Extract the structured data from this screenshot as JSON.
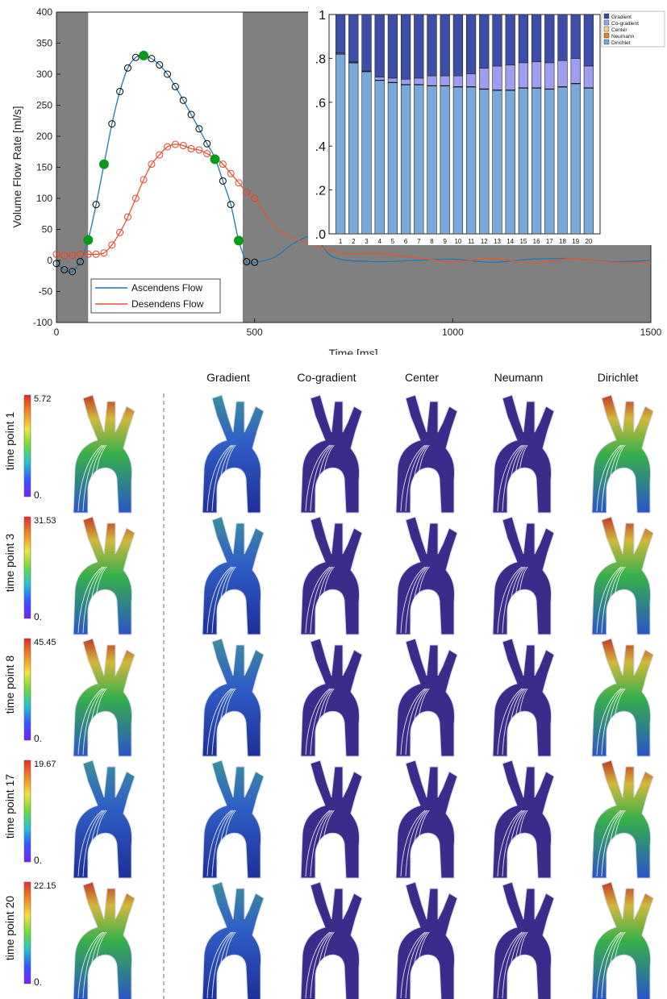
{
  "chart_data": [
    {
      "type": "line",
      "xlabel": "Time [ms]",
      "ylabel": "Volume Flow Rate [ml/s]",
      "xlim": [
        0,
        1500
      ],
      "ylim": [
        -100,
        400
      ],
      "xticks": [
        0,
        500,
        1000,
        1500
      ],
      "yticks": [
        -100,
        -50,
        0,
        50,
        100,
        150,
        200,
        250,
        300,
        350,
        400
      ],
      "grid": false,
      "legend_position": "bottom-left",
      "shaded_ranges": [
        [
          0,
          80
        ],
        [
          470,
          1500
        ]
      ],
      "series": [
        {
          "name": "Ascendens Flow",
          "color": "#1f77b4",
          "marker_color": "#000000",
          "x": [
            0,
            20,
            40,
            60,
            80,
            100,
            120,
            140,
            160,
            180,
            200,
            220,
            240,
            260,
            280,
            300,
            320,
            340,
            360,
            380,
            400,
            420,
            440,
            460,
            480,
            500,
            550,
            600,
            650,
            700,
            800,
            900,
            1000,
            1100,
            1200,
            1300,
            1400,
            1500
          ],
          "y": [
            -5,
            -15,
            -18,
            -2,
            33,
            90,
            155,
            220,
            272,
            310,
            327,
            330,
            325,
            315,
            300,
            280,
            258,
            235,
            212,
            188,
            165,
            128,
            90,
            32,
            -2,
            -3,
            5,
            28,
            38,
            5,
            -2,
            0,
            2,
            -3,
            2,
            3,
            -2,
            0
          ]
        },
        {
          "name": "Desendens Flow",
          "color": "#e4572e",
          "marker_color": "#e8402a",
          "x": [
            0,
            20,
            40,
            60,
            80,
            100,
            120,
            140,
            160,
            180,
            200,
            220,
            240,
            260,
            280,
            300,
            320,
            340,
            360,
            380,
            400,
            420,
            440,
            460,
            480,
            500,
            550,
            600,
            650,
            700,
            750,
            800,
            900,
            1000,
            1100,
            1200,
            1300,
            1400,
            1500
          ],
          "y": [
            10,
            8,
            8,
            10,
            10,
            10,
            12,
            25,
            45,
            70,
            100,
            130,
            155,
            170,
            183,
            187,
            185,
            180,
            178,
            172,
            165,
            155,
            140,
            125,
            110,
            100,
            55,
            35,
            25,
            15,
            10,
            12,
            5,
            -2,
            3,
            -4,
            3,
            -3,
            -4
          ]
        }
      ],
      "highlight_points": {
        "color": "#0a9a1a",
        "x": [
          80,
          120,
          220,
          400,
          460
        ],
        "y": [
          33,
          155,
          330,
          163,
          32
        ]
      }
    },
    {
      "type": "bar",
      "stacked": true,
      "categories": [
        "1",
        "2",
        "3",
        "4",
        "5",
        "6",
        "7",
        "8",
        "9",
        "10",
        "11",
        "12",
        "13",
        "14",
        "15",
        "16",
        "17",
        "18",
        "19",
        "20"
      ],
      "ylim": [
        0,
        1
      ],
      "ytick_labels": [
        ".0",
        ".2",
        ".4",
        ".6",
        ".8",
        "1"
      ],
      "yticks": [
        0,
        0.2,
        0.4,
        0.6,
        0.8,
        1
      ],
      "legend_position": "outside-right",
      "series": [
        {
          "name": "Dirichlet",
          "color": "#78a9d8",
          "values": [
            0.82,
            0.78,
            0.74,
            0.7,
            0.69,
            0.68,
            0.68,
            0.675,
            0.675,
            0.67,
            0.67,
            0.66,
            0.655,
            0.655,
            0.665,
            0.665,
            0.66,
            0.67,
            0.685,
            0.665
          ]
        },
        {
          "name": "Neumann",
          "color": "#e8821e",
          "values": [
            0,
            0,
            0,
            0,
            0,
            0,
            0,
            0,
            0,
            0,
            0,
            0,
            0,
            0,
            0,
            0,
            0,
            0,
            0,
            0
          ]
        },
        {
          "name": "Center",
          "color": "#e9d48a",
          "values": [
            0,
            0,
            0,
            0,
            0,
            0,
            0,
            0,
            0,
            0,
            0,
            0,
            0,
            0,
            0,
            0,
            0,
            0,
            0,
            0
          ]
        },
        {
          "name": "Co-gradient",
          "color": "#9d9ef0",
          "values": [
            0.005,
            0.005,
            0.005,
            0.015,
            0.02,
            0.025,
            0.03,
            0.045,
            0.045,
            0.05,
            0.06,
            0.095,
            0.11,
            0.115,
            0.115,
            0.12,
            0.12,
            0.12,
            0.115,
            0.1
          ]
        },
        {
          "name": "Gradient",
          "color": "#3c4ea8",
          "values": [
            0.175,
            0.215,
            0.255,
            0.285,
            0.29,
            0.295,
            0.29,
            0.28,
            0.28,
            0.28,
            0.27,
            0.245,
            0.235,
            0.23,
            0.22,
            0.215,
            0.22,
            0.21,
            0.2,
            0.235
          ]
        }
      ]
    }
  ],
  "grid": {
    "columns": [
      "Gradient",
      "Co-gradient",
      "Center",
      "Neumann",
      "Dirichlet"
    ],
    "rows": [
      {
        "label": "time point 1",
        "max": "5.72",
        "min": "0."
      },
      {
        "label": "time point 3",
        "max": "31.53",
        "min": "0."
      },
      {
        "label": "time point 8",
        "max": "45.45",
        "min": "0."
      },
      {
        "label": "time point 17",
        "max": "19.67",
        "min": "0."
      },
      {
        "label": "time point 20",
        "max": "22.15",
        "min": "0."
      }
    ],
    "colorbar_colors": [
      "#7a1fff",
      "#3455ff",
      "#23c2d8",
      "#6bdc3a",
      "#f1e33c",
      "#f08a22",
      "#e8292a"
    ]
  }
}
